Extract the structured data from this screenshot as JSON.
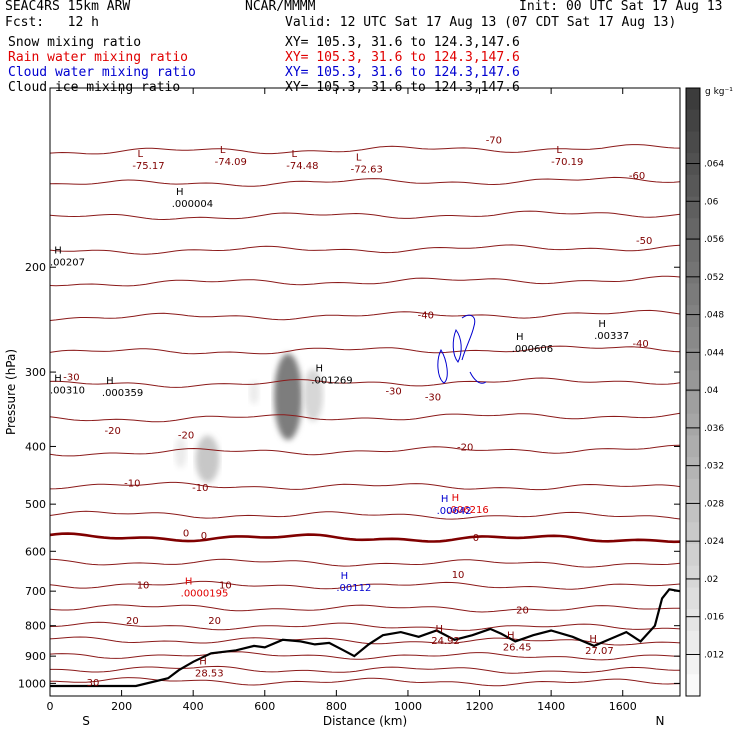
{
  "header": {
    "model": "SEAC4RS 15km ARW",
    "center": "NCAR/MMMM",
    "init": "Init: 00 UTC Sat 17 Aug 13",
    "fcst": "Fcst:   12 h",
    "valid": "Valid: 12 UTC Sat 17 Aug 13 (07 CDT Sat 17 Aug 13)",
    "fields": [
      {
        "name": "Snow mixing ratio",
        "xy": "XY= 105.3, 31.6 to 124.3,147.6",
        "color": "#000000"
      },
      {
        "name": "Rain water mixing ratio",
        "xy": "XY= 105.3, 31.6 to 124.3,147.6",
        "color": "#e00000"
      },
      {
        "name": "Cloud water mixing ratio",
        "xy": "XY= 105.3, 31.6 to 124.3,147.6",
        "color": "#0000d0"
      },
      {
        "name": "Cloud ice mixing ratio",
        "xy": "XY= 105.3, 31.6 to 124.3,147.6",
        "color": "#000000"
      }
    ]
  },
  "chart_data": {
    "type": "cross-section",
    "xlabel": "Distance (km)",
    "ylabel": "Pressure (hPa)",
    "xlim": [
      0,
      1760
    ],
    "x_ticks": [
      0,
      200,
      400,
      600,
      800,
      1000,
      1200,
      1400,
      1600
    ],
    "y_ticks": [
      200,
      300,
      400,
      500,
      600,
      700,
      800,
      900,
      1000
    ],
    "y_scale": "log",
    "endpoints": {
      "left": "S",
      "right": "N"
    },
    "colorbar": {
      "unit": "g kg⁻¹",
      "ticks": [
        ".064",
        ".06",
        ".056",
        ".052",
        ".048",
        ".044",
        ".04",
        ".036",
        ".032",
        ".028",
        ".024",
        ".02",
        ".016",
        ".012"
      ]
    },
    "isotherm_labels": [
      {
        "text": "-70",
        "x": 1240,
        "p": 122
      },
      {
        "text": "-60",
        "x": 1640,
        "p": 140
      },
      {
        "text": "-50",
        "x": 1660,
        "p": 180
      },
      {
        "text": "-40",
        "x": 1050,
        "p": 240
      },
      {
        "text": "-40",
        "x": 1650,
        "p": 268
      },
      {
        "text": "-30",
        "x": 60,
        "p": 305
      },
      {
        "text": "-30",
        "x": 960,
        "p": 322
      },
      {
        "text": "-30",
        "x": 1070,
        "p": 330
      },
      {
        "text": "-20",
        "x": 175,
        "p": 375
      },
      {
        "text": "-20",
        "x": 380,
        "p": 382
      },
      {
        "text": "-20",
        "x": 1160,
        "p": 400
      },
      {
        "text": "-10",
        "x": 230,
        "p": 460
      },
      {
        "text": "-10",
        "x": 420,
        "p": 468
      },
      {
        "text": "0",
        "x": 380,
        "p": 558
      },
      {
        "text": "0",
        "x": 430,
        "p": 563
      },
      {
        "text": "0",
        "x": 1190,
        "p": 568
      },
      {
        "text": "10",
        "x": 260,
        "p": 682
      },
      {
        "text": "10",
        "x": 490,
        "p": 682
      },
      {
        "text": "10",
        "x": 1140,
        "p": 655
      },
      {
        "text": "20",
        "x": 230,
        "p": 782
      },
      {
        "text": "20",
        "x": 460,
        "p": 782
      },
      {
        "text": "20",
        "x": 1320,
        "p": 752
      },
      {
        "text": "30",
        "x": 120,
        "p": 995
      }
    ],
    "extrema_labels": [
      {
        "mark": "L",
        "value": "-75.17",
        "x": 230,
        "p": 132,
        "color": "#800000"
      },
      {
        "mark": "L",
        "value": "-74.09",
        "x": 460,
        "p": 130,
        "color": "#800000"
      },
      {
        "mark": "L",
        "value": "-74.48",
        "x": 660,
        "p": 132,
        "color": "#800000"
      },
      {
        "mark": "L",
        "value": "-72.63",
        "x": 840,
        "p": 134,
        "color": "#800000"
      },
      {
        "mark": "L",
        "value": "-70.19",
        "x": 1400,
        "p": 130,
        "color": "#800000"
      },
      {
        "mark": "H",
        "value": ".000004",
        "x": 340,
        "p": 153,
        "color": "#000000"
      },
      {
        "mark": "H",
        "value": ".00207",
        "x": 0,
        "p": 192,
        "color": "#000000"
      },
      {
        "mark": "H",
        "value": ".00337",
        "x": 1520,
        "p": 255,
        "color": "#000000"
      },
      {
        "mark": "H",
        "value": ".000606",
        "x": 1290,
        "p": 268,
        "color": "#000000"
      },
      {
        "mark": "H",
        "value": ".001269",
        "x": 730,
        "p": 303,
        "color": "#000000"
      },
      {
        "mark": "H",
        "value": ".00310",
        "x": 0,
        "p": 315,
        "color": "#000000"
      },
      {
        "mark": "H",
        "value": ".000359",
        "x": 145,
        "p": 318,
        "color": "#000000"
      },
      {
        "mark": "H",
        "value": ".006216",
        "x": 1110,
        "p": 500,
        "color": "#e00000"
      },
      {
        "mark": "H",
        "value": ".00642",
        "x": 1080,
        "p": 502,
        "color": "#0000d0"
      },
      {
        "mark": "H",
        "value": ".0000195",
        "x": 365,
        "p": 690,
        "color": "#e00000"
      },
      {
        "mark": "H",
        "value": ".00112",
        "x": 800,
        "p": 675,
        "color": "#0000d0"
      },
      {
        "mark": "H",
        "value": "24.92",
        "x": 1065,
        "p": 830,
        "color": "#800000"
      },
      {
        "mark": "H",
        "value": "26.45",
        "x": 1265,
        "p": 850,
        "color": "#800000"
      },
      {
        "mark": "H",
        "value": "27.07",
        "x": 1495,
        "p": 862,
        "color": "#800000"
      },
      {
        "mark": "H",
        "value": "28.53",
        "x": 405,
        "p": 940,
        "color": "#800000"
      }
    ],
    "isotherm_pressures": [
      128,
      145,
      165,
      188,
      213,
      243,
      278,
      315,
      360,
      410,
      465,
      520,
      568,
      625,
      682,
      745,
      800,
      845,
      895,
      945,
      990
    ],
    "terrain": {
      "x": [
        0,
        240,
        330,
        360,
        400,
        450,
        520,
        570,
        600,
        650,
        700,
        740,
        780,
        820,
        850,
        890,
        930,
        980,
        1030,
        1080,
        1130,
        1180,
        1230,
        1260,
        1300,
        1350,
        1400,
        1460,
        1520,
        1560,
        1610,
        1650,
        1690,
        1710,
        1730,
        1760
      ],
      "p": [
        1010,
        1010,
        980,
        950,
        920,
        890,
        880,
        865,
        870,
        845,
        850,
        860,
        855,
        880,
        900,
        860,
        830,
        820,
        835,
        815,
        845,
        830,
        810,
        825,
        850,
        830,
        815,
        835,
        865,
        845,
        820,
        850,
        800,
        720,
        695,
        700
      ]
    },
    "hydrometeor_shading": [
      {
        "x": 665,
        "p": 330,
        "rx": 14,
        "rp": 60,
        "level": 0.65
      },
      {
        "x": 735,
        "p": 328,
        "rx": 10,
        "rp": 35,
        "level": 0.2
      },
      {
        "x": 440,
        "p": 420,
        "rx": 12,
        "rp": 40,
        "level": 0.28
      },
      {
        "x": 365,
        "p": 410,
        "rx": 6,
        "rp": 25,
        "level": 0.1
      },
      {
        "x": 570,
        "p": 325,
        "rx": 5,
        "rp": 15,
        "level": 0.1
      }
    ]
  }
}
